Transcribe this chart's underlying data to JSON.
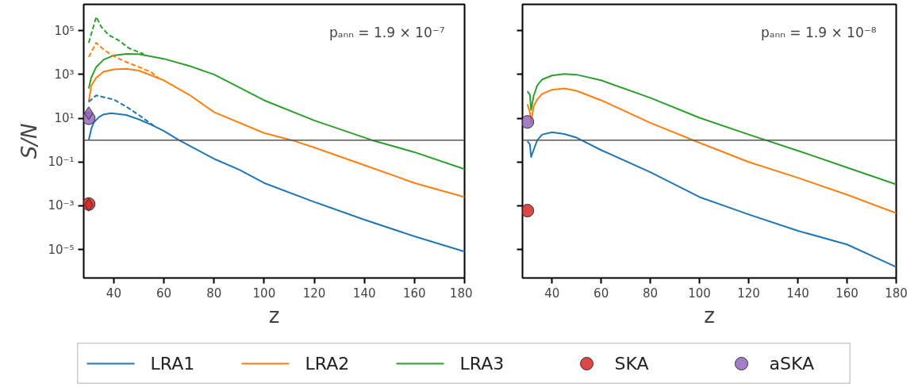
{
  "chart_data": [
    {
      "type": "line",
      "xlabel": "z",
      "ylabel": "S/N",
      "log": "y",
      "legend": "bottom",
      "grid": false,
      "xlim": [
        28,
        180
      ],
      "xticks": [
        40,
        60,
        80,
        100,
        120,
        140,
        160,
        180
      ],
      "ylim": [
        5e-07,
        1600000.0
      ],
      "yticks": [
        {
          "value": 1e-05,
          "label": "10⁻⁵"
        },
        {
          "value": 0.001,
          "label": "10⁻³"
        },
        {
          "value": 0.1,
          "label": "10⁻¹"
        },
        {
          "value": 10,
          "label": "10¹"
        },
        {
          "value": 1000,
          "label": "10³"
        },
        {
          "value": 100000,
          "label": "10⁵"
        }
      ],
      "ref_lines": [
        {
          "axis": "y",
          "value": 1,
          "color": "#555555"
        }
      ],
      "annotations": [
        "pₐₙₙ = 1.9 × 10⁻⁷"
      ],
      "series": [
        {
          "name": "LRA1",
          "color": "#1f77b4",
          "line_style": "solid",
          "x": [
            30,
            31,
            32,
            34,
            36,
            39,
            45,
            50,
            55,
            60,
            66,
            80,
            90,
            100,
            120,
            140,
            160,
            180
          ],
          "values": [
            1,
            3.2,
            6.3,
            11,
            15,
            17,
            14,
            8.9,
            5,
            2.6,
            1,
            0.14,
            0.045,
            0.011,
            0.0015,
            0.00023,
            4e-05,
            8e-06
          ]
        },
        {
          "name": "LRA2",
          "color": "#ff7f0e",
          "line_style": "solid",
          "x": [
            30,
            31,
            33,
            36,
            40,
            45,
            50,
            60,
            70,
            80,
            100,
            111,
            120,
            140,
            160,
            180
          ],
          "values": [
            56,
            300,
            710,
            1350,
            1700,
            1800,
            1500,
            540,
            120,
            19,
            2.1,
            1,
            0.46,
            0.072,
            0.011,
            0.0025
          ]
        },
        {
          "name": "LRA3",
          "color": "#2ca02c",
          "line_style": "solid",
          "x": [
            30,
            31,
            33,
            36,
            40,
            45,
            50,
            60,
            70,
            80,
            100,
            120,
            143,
            160,
            180
          ],
          "values": [
            230,
            710,
            2200,
            4800,
            7400,
            8700,
            8500,
            5200,
            2500,
            1000,
            66,
            7.9,
            1,
            0.28,
            0.047
          ]
        },
        {
          "color": "#1f77b4",
          "line_style": "dashed",
          "x": [
            30,
            33,
            40,
            45,
            50,
            56
          ],
          "values": [
            56,
            110,
            72,
            34,
            14,
            4.5
          ]
        },
        {
          "color": "#ff7f0e",
          "line_style": "dashed",
          "x": [
            30,
            33,
            36,
            40,
            45,
            50,
            55,
            58
          ],
          "values": [
            6300,
            28000,
            13500,
            6800,
            3700,
            2200,
            1260,
            660
          ]
        },
        {
          "color": "#2ca02c",
          "line_style": "dashed",
          "x": [
            30,
            33,
            35,
            38,
            42,
            46,
            52
          ],
          "values": [
            28000,
            430000,
            150000,
            63000,
            36000,
            16000,
            8500
          ]
        },
        {
          "name": "SKA",
          "type": "scatter",
          "marker": "circle",
          "color": "#d62728",
          "x": [
            30
          ],
          "values": [
            0.0012
          ]
        },
        {
          "name": "aSKA",
          "type": "scatter",
          "marker": "circle",
          "color": "#9467bd",
          "x": [
            30
          ],
          "values": [
            10
          ]
        },
        {
          "type": "scatter",
          "marker": "diamond",
          "color": "#d62728",
          "x": [
            30
          ],
          "values": [
            0.0011
          ]
        },
        {
          "type": "scatter",
          "marker": "diamond",
          "color": "#9467bd",
          "x": [
            30
          ],
          "values": [
            17
          ]
        }
      ]
    },
    {
      "type": "line",
      "xlabel": "z",
      "log": "y",
      "grid": false,
      "tick_labels": "x",
      "xlim": [
        28,
        180
      ],
      "xticks": [
        40,
        60,
        80,
        100,
        120,
        140,
        160,
        180
      ],
      "ylim": [
        5e-07,
        1600000.0
      ],
      "yticks": [
        {
          "value": 1e-05,
          "label": null
        },
        {
          "value": 0.001,
          "label": null
        },
        {
          "value": 0.1,
          "label": null
        },
        {
          "value": 10,
          "label": null
        },
        {
          "value": 1000,
          "label": null
        },
        {
          "value": 100000,
          "label": null
        }
      ],
      "ref_lines": [
        {
          "axis": "y",
          "value": 1,
          "color": "#555555"
        }
      ],
      "annotations": [
        "pₐₙₙ = 1.9 × 10⁻⁸"
      ],
      "series": [
        {
          "color": "#1f77b4",
          "line_style": "solid",
          "x": [
            30,
            31,
            31.5,
            32.5,
            34,
            36,
            40,
            45,
            50,
            60,
            80,
            100,
            120,
            140,
            160,
            180
          ],
          "values": [
            0.89,
            0.65,
            0.17,
            0.35,
            0.98,
            1.8,
            2.3,
            1.9,
            1.3,
            0.35,
            0.034,
            0.0025,
            0.0004,
            7.2e-05,
            1.7e-05,
            1.6e-06
          ]
        },
        {
          "color": "#ff7f0e",
          "line_style": "solid",
          "x": [
            30,
            31,
            31.5,
            32.5,
            34,
            36,
            40,
            45,
            50,
            60,
            80,
            100,
            120,
            140,
            160,
            180
          ],
          "values": [
            44,
            19,
            5.8,
            34,
            72,
            130,
            200,
            230,
            180,
            66,
            6.2,
            0.76,
            0.1,
            0.019,
            0.0032,
            0.00046
          ]
        },
        {
          "color": "#2ca02c",
          "line_style": "solid",
          "x": [
            30,
            31,
            31.5,
            32.5,
            34,
            36,
            40,
            45,
            50,
            60,
            80,
            100,
            120,
            140,
            160,
            180
          ],
          "values": [
            170,
            120,
            24,
            100,
            320,
            590,
            890,
            1050,
            980,
            540,
            85,
            10.5,
            1.8,
            0.33,
            0.056,
            0.0095
          ]
        },
        {
          "type": "scatter",
          "marker": "circle",
          "color": "#d62728",
          "x": [
            30
          ],
          "values": [
            0.0006
          ]
        },
        {
          "type": "scatter",
          "marker": "circle",
          "color": "#9467bd",
          "x": [
            30
          ],
          "values": [
            6.8
          ]
        }
      ]
    }
  ]
}
